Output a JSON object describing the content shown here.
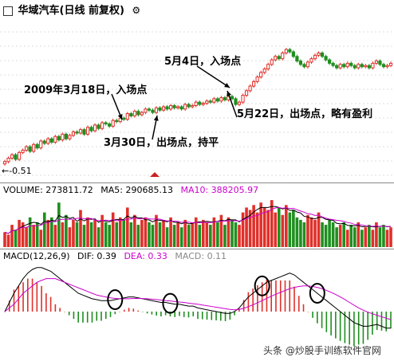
{
  "header": {
    "title": "华域汽车(日线 前复权)",
    "icon_left": "chart-icon",
    "icon_right": "settings-gear-icon"
  },
  "price_panel": {
    "low_label": "←-0.51",
    "annotations": [
      {
        "text": "5月4日，入场点"
      },
      {
        "text": "2009年3月18日，入场点"
      },
      {
        "text": "5月22日，出场点，略有盈利"
      },
      {
        "text": "3月30日，出场点，持平"
      }
    ]
  },
  "volume_panel": {
    "label": "VOLUME: 273811.72",
    "ma5": "MA5: 290685.13",
    "ma10": "MA10: 388205.97",
    "colors": {
      "ma5": "#000000",
      "ma10": "#cc00cc",
      "up": "#e0302a",
      "down": "#1f8f1f"
    }
  },
  "macd_panel": {
    "label": "MACD(12,26,9)",
    "dif": "DIF: 0.39",
    "dea": "DEA: 0.33",
    "macd": "MACD: 0.11",
    "colors": {
      "dif": "#000000",
      "dea": "#cc00cc",
      "pos": "#e0302a",
      "neg": "#1f8f1f"
    }
  },
  "watermark": "头条 @炒股手训练软件官网",
  "chart_data": {
    "type": "candlestick",
    "closes": [
      0.6,
      0.63,
      0.66,
      0.62,
      0.68,
      0.7,
      0.73,
      0.69,
      0.75,
      0.72,
      0.78,
      0.76,
      0.8,
      0.77,
      0.82,
      0.79,
      0.84,
      0.8,
      0.83,
      0.86,
      0.85,
      0.88,
      0.84,
      0.9,
      0.87,
      0.92,
      0.89,
      0.94,
      0.93,
      0.91,
      0.96,
      0.95,
      0.98,
      0.97,
      1.02,
      1.0,
      1.04,
      1.01,
      1.03,
      1.06,
      1.05,
      1.03,
      1.07,
      1.05,
      1.08,
      1.06,
      1.09,
      1.07,
      1.08,
      1.06,
      1.1,
      1.08,
      1.09,
      1.12,
      1.1,
      1.11,
      1.13,
      1.12,
      1.15,
      1.13,
      1.16,
      1.14,
      1.17,
      1.15,
      1.1,
      1.12,
      1.18,
      1.22,
      1.26,
      1.3,
      1.34,
      1.38,
      1.41,
      1.45,
      1.49,
      1.52,
      1.5,
      1.55,
      1.58,
      1.56,
      1.52,
      1.48,
      1.45,
      1.43,
      1.47,
      1.5,
      1.53,
      1.55,
      1.52,
      1.49,
      1.46,
      1.44,
      1.42,
      1.45,
      1.43,
      1.46,
      1.44,
      1.42,
      1.45,
      1.43,
      1.44,
      1.42,
      1.46,
      1.48,
      1.45,
      1.43,
      1.44,
      1.46
    ],
    "volume": [
      0.3,
      0.25,
      0.45,
      0.35,
      0.55,
      0.5,
      0.4,
      0.6,
      0.45,
      0.5,
      0.35,
      0.7,
      0.55,
      0.6,
      0.45,
      0.9,
      0.5,
      0.65,
      0.4,
      0.55,
      0.5,
      0.75,
      0.45,
      0.6,
      0.5,
      0.55,
      0.4,
      0.65,
      0.5,
      0.45,
      0.7,
      0.5,
      0.6,
      0.55,
      0.8,
      0.5,
      0.65,
      0.45,
      0.55,
      0.6,
      0.5,
      0.45,
      0.65,
      0.5,
      0.55,
      0.4,
      0.6,
      0.45,
      0.5,
      0.4,
      0.55,
      0.45,
      0.5,
      0.6,
      0.45,
      0.55,
      0.5,
      0.45,
      0.6,
      0.5,
      0.65,
      0.45,
      0.6,
      0.55,
      0.5,
      0.45,
      0.7,
      0.8,
      0.75,
      0.85,
      0.7,
      0.9,
      0.8,
      0.75,
      0.95,
      0.7,
      0.8,
      0.65,
      0.85,
      0.7,
      0.75,
      0.6,
      0.55,
      0.5,
      0.65,
      0.6,
      0.55,
      0.7,
      0.5,
      0.45,
      0.55,
      0.5,
      0.4,
      0.45,
      0.5,
      0.35,
      0.45,
      0.4,
      0.5,
      0.35,
      0.4,
      0.45,
      0.35,
      0.5,
      0.4,
      0.45,
      0.35,
      0.4
    ],
    "dif": [
      0.0,
      0.05,
      0.1,
      0.14,
      0.18,
      0.21,
      0.23,
      0.24,
      0.24,
      0.23,
      0.22,
      0.2,
      0.18,
      0.16,
      0.14,
      0.12,
      0.1,
      0.09,
      0.08,
      0.07,
      0.065,
      0.06,
      0.06,
      0.06,
      0.065,
      0.07,
      0.075,
      0.08,
      0.08,
      0.075,
      0.07,
      0.065,
      0.06,
      0.055,
      0.05,
      0.05,
      0.045,
      0.04,
      0.04,
      0.035,
      0.03,
      0.03,
      0.02,
      0.015,
      0.01,
      0.005,
      0.0,
      -0.005,
      -0.01,
      -0.01,
      0.0,
      0.02,
      0.05,
      0.08,
      0.1,
      0.12,
      0.14,
      0.16,
      0.17,
      0.18,
      0.19,
      0.2,
      0.21,
      0.2,
      0.18,
      0.16,
      0.14,
      0.12,
      0.1,
      0.08,
      0.06,
      0.04,
      0.02,
      0.0,
      -0.02,
      -0.04,
      -0.06,
      -0.07,
      -0.08,
      -0.08,
      -0.075,
      -0.07,
      -0.08,
      -0.09,
      -0.09
    ],
    "dea": [
      0.0,
      0.02,
      0.04,
      0.07,
      0.1,
      0.12,
      0.14,
      0.16,
      0.17,
      0.18,
      0.18,
      0.18,
      0.17,
      0.16,
      0.15,
      0.14,
      0.13,
      0.12,
      0.11,
      0.1,
      0.09,
      0.085,
      0.08,
      0.075,
      0.072,
      0.07,
      0.07,
      0.07,
      0.072,
      0.072,
      0.071,
      0.07,
      0.068,
      0.066,
      0.063,
      0.06,
      0.058,
      0.055,
      0.052,
      0.05,
      0.046,
      0.043,
      0.04,
      0.036,
      0.032,
      0.028,
      0.024,
      0.02,
      0.016,
      0.012,
      0.01,
      0.012,
      0.018,
      0.027,
      0.037,
      0.048,
      0.06,
      0.072,
      0.084,
      0.095,
      0.105,
      0.115,
      0.125,
      0.132,
      0.137,
      0.14,
      0.14,
      0.137,
      0.132,
      0.125,
      0.116,
      0.105,
      0.093,
      0.08,
      0.066,
      0.05,
      0.035,
      0.02,
      0.008,
      -0.003,
      -0.012,
      -0.02,
      -0.028,
      -0.036,
      -0.044
    ],
    "circles_at_index": [
      24,
      36,
      56,
      68
    ]
  }
}
